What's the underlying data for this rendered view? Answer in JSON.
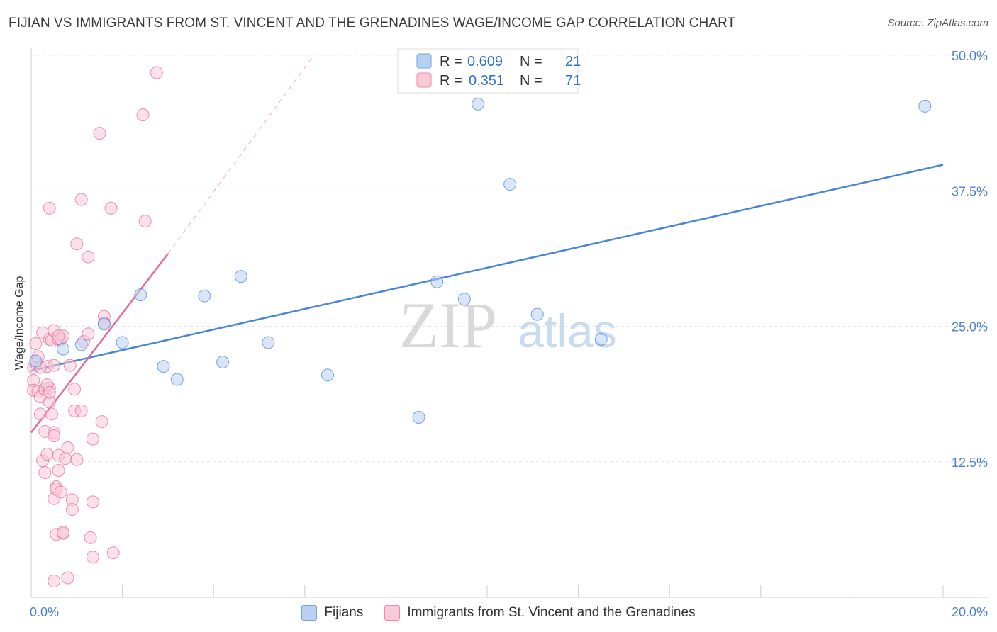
{
  "header": {
    "title": "FIJIAN VS IMMIGRANTS FROM ST. VINCENT AND THE GRENADINES WAGE/INCOME GAP CORRELATION CHART",
    "source": "Source: ZipAtlas.com"
  },
  "watermark": {
    "zip": "ZIP",
    "atlas": "atlas"
  },
  "legend": {
    "items": [
      {
        "r_label": "R =",
        "r_value": "0.609",
        "n_label": "N =",
        "n_value": "21",
        "color": "#b8d1f3"
      },
      {
        "r_label": "R =",
        "r_value": "0.351",
        "n_label": "N =",
        "n_value": "71",
        "color": "#f9c9d7"
      }
    ]
  },
  "bottom_legend": {
    "fijians": "Fijians",
    "immigrants": "Immigrants from St. Vincent and the Grenadines"
  },
  "chart_data": {
    "type": "scatter",
    "title": "FIJIAN VS IMMIGRANTS FROM ST. VINCENT AND THE GRENADINES WAGE/INCOME GAP CORRELATION CHART",
    "xlabel": "",
    "ylabel": "Wage/Income Gap",
    "xlim": [
      0,
      20
    ],
    "ylim": [
      0,
      50
    ],
    "x_tick_labels": [
      "0.0%",
      "20.0%"
    ],
    "y_ticks": [
      12.5,
      25.0,
      37.5,
      50.0
    ],
    "y_tick_labels": [
      "12.5%",
      "25.0%",
      "37.5%",
      "50.0%"
    ],
    "grid": true,
    "series": [
      {
        "name": "Fijians",
        "color": "#4a86d8",
        "fill": "#b8d1f3",
        "points": [
          [
            0.1,
            21.8
          ],
          [
            0.7,
            22.9
          ],
          [
            1.1,
            23.3
          ],
          [
            1.6,
            25.2
          ],
          [
            2.0,
            23.5
          ],
          [
            2.4,
            27.9
          ],
          [
            2.9,
            21.3
          ],
          [
            3.2,
            20.1
          ],
          [
            3.8,
            27.8
          ],
          [
            4.2,
            21.7
          ],
          [
            4.6,
            29.6
          ],
          [
            5.2,
            23.5
          ],
          [
            6.5,
            20.5
          ],
          [
            8.5,
            16.6
          ],
          [
            8.9,
            29.1
          ],
          [
            9.5,
            27.5
          ],
          [
            9.8,
            45.5
          ],
          [
            10.5,
            38.1
          ],
          [
            11.1,
            26.1
          ],
          [
            12.5,
            23.8
          ],
          [
            19.6,
            45.3
          ]
        ],
        "trend": {
          "x": [
            0.0,
            20.0
          ],
          "y": [
            20.9,
            39.9
          ]
        }
      },
      {
        "name": "Immigrants from St. Vincent and the Grenadines",
        "color": "#e36d96",
        "fill": "#f9c9d7",
        "points": [
          [
            0.05,
            21.2
          ],
          [
            0.05,
            20.0
          ],
          [
            0.05,
            19.1
          ],
          [
            0.1,
            21.6
          ],
          [
            0.1,
            23.4
          ],
          [
            0.15,
            19.0
          ],
          [
            0.2,
            18.5
          ],
          [
            0.2,
            16.9
          ],
          [
            0.25,
            24.4
          ],
          [
            0.25,
            12.6
          ],
          [
            0.3,
            19.2
          ],
          [
            0.3,
            11.5
          ],
          [
            0.3,
            15.3
          ],
          [
            0.35,
            13.2
          ],
          [
            0.35,
            21.3
          ],
          [
            0.4,
            23.8
          ],
          [
            0.4,
            35.9
          ],
          [
            0.4,
            19.3
          ],
          [
            0.4,
            18.0
          ],
          [
            0.45,
            16.9
          ],
          [
            0.45,
            23.7
          ],
          [
            0.5,
            15.2
          ],
          [
            0.5,
            14.9
          ],
          [
            0.5,
            24.6
          ],
          [
            0.5,
            21.4
          ],
          [
            0.5,
            1.5
          ],
          [
            0.5,
            9.1
          ],
          [
            0.55,
            10.2
          ],
          [
            0.55,
            10.0
          ],
          [
            0.55,
            5.8
          ],
          [
            0.6,
            23.8
          ],
          [
            0.6,
            13.1
          ],
          [
            0.6,
            11.7
          ],
          [
            0.65,
            23.8
          ],
          [
            0.65,
            9.7
          ],
          [
            0.7,
            5.9
          ],
          [
            0.7,
            6.0
          ],
          [
            0.75,
            12.8
          ],
          [
            0.7,
            24.1
          ],
          [
            0.8,
            13.8
          ],
          [
            0.8,
            1.8
          ],
          [
            0.85,
            21.4
          ],
          [
            0.9,
            9.0
          ],
          [
            0.9,
            8.1
          ],
          [
            0.95,
            19.2
          ],
          [
            0.95,
            17.2
          ],
          [
            1.0,
            12.7
          ],
          [
            1.0,
            32.6
          ],
          [
            1.1,
            17.2
          ],
          [
            1.1,
            36.7
          ],
          [
            1.15,
            23.6
          ],
          [
            1.25,
            31.4
          ],
          [
            1.25,
            24.3
          ],
          [
            1.3,
            5.5
          ],
          [
            1.35,
            8.8
          ],
          [
            1.35,
            3.7
          ],
          [
            1.35,
            14.6
          ],
          [
            1.5,
            42.8
          ],
          [
            1.55,
            16.2
          ],
          [
            1.6,
            25.9
          ],
          [
            1.6,
            25.3
          ],
          [
            1.75,
            35.9
          ],
          [
            1.8,
            4.1
          ],
          [
            2.45,
            44.5
          ],
          [
            2.5,
            34.7
          ],
          [
            2.75,
            48.4
          ],
          [
            0.15,
            22.2
          ],
          [
            0.35,
            19.6
          ],
          [
            0.6,
            24.1
          ],
          [
            0.2,
            21.2
          ],
          [
            0.4,
            18.9
          ]
        ],
        "trend": {
          "x": [
            0.0,
            3.0
          ],
          "y": [
            15.2,
            31.7
          ]
        },
        "trend_extension": {
          "x": [
            3.0,
            6.2
          ],
          "y": [
            31.7,
            50.0
          ]
        }
      }
    ]
  }
}
